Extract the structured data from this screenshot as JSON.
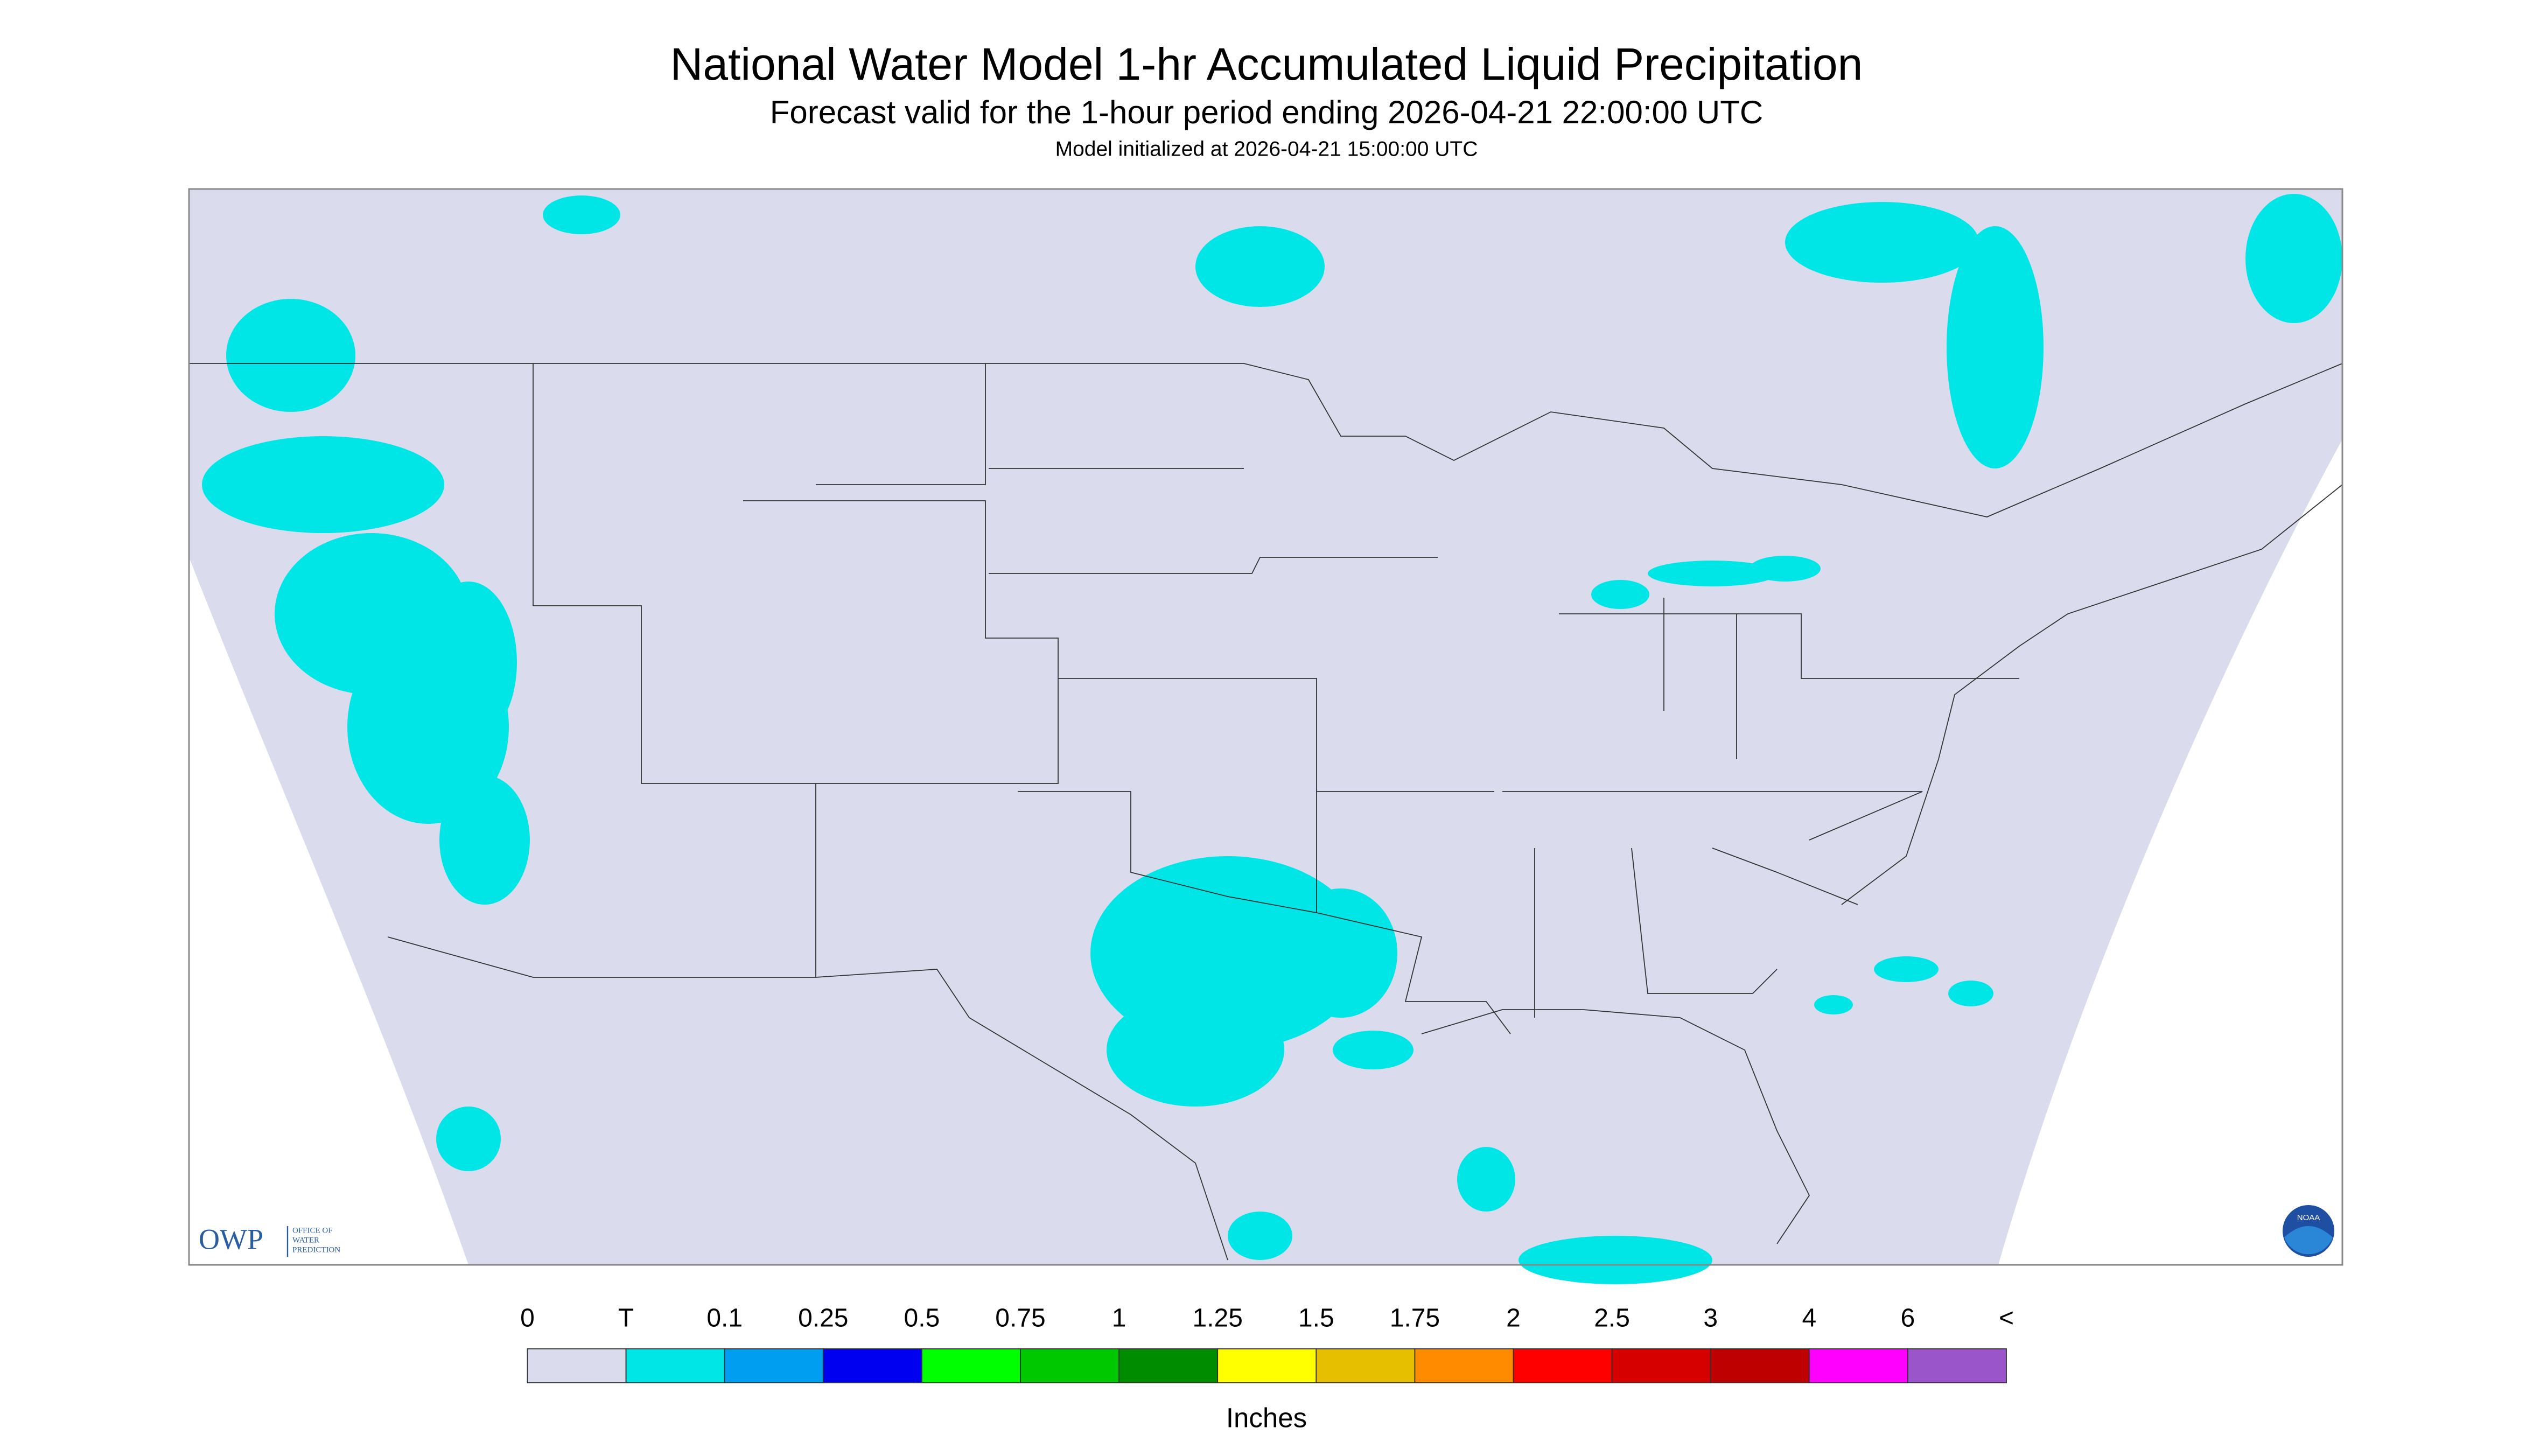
{
  "header": {
    "title": "National Water Model 1-hr Accumulated Liquid Precipitation",
    "subtitle": "Forecast valid for the 1-hour period ending 2026-04-21 22:00:00 UTC",
    "init": "Model initialized at 2026-04-21 15:00:00 UTC"
  },
  "logo": {
    "name": "OWP",
    "line1": "OFFICE OF",
    "line2": "WATER",
    "line3": "PREDICTION",
    "noaa": "NOAA"
  },
  "legend": {
    "labels": [
      "0",
      "T",
      "0.1",
      "0.25",
      "0.5",
      "0.75",
      "1",
      "1.25",
      "1.5",
      "1.75",
      "2",
      "2.5",
      "3",
      "4",
      "6",
      "<"
    ],
    "colors": [
      "#dadcee",
      "#00e6e6",
      "#009ef0",
      "#0000f0",
      "#00ff00",
      "#00c800",
      "#008c00",
      "#ffff00",
      "#e6bf00",
      "#ff8c00",
      "#ff0000",
      "#d70000",
      "#bf0000",
      "#ff00ff",
      "#9955c9"
    ],
    "unit": "Inches"
  }
}
